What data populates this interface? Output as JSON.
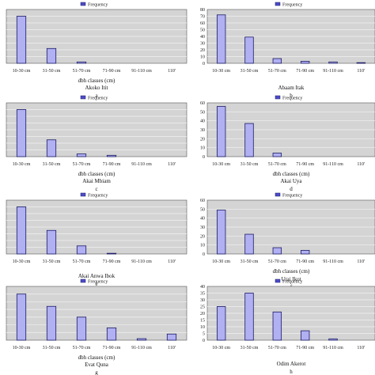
{
  "legend_label": "Frequency",
  "colors": {
    "bar_fill": "#b0b0f2",
    "bar_stroke": "#1a1a66",
    "plot_bg": "#d4d4d4",
    "grid": "#f2f2f2",
    "legend_swatch": "#4c4ccc"
  },
  "chart_data": [
    {
      "type": "bar",
      "panel_letter": "a",
      "title": "Akoko Itit",
      "xlabel": "dbh classes (cm)",
      "categories": [
        "10-30 cm",
        "31-50 cm",
        "51-70 cm",
        "71-90 cm",
        "91-110 cm",
        "110'"
      ],
      "series": [
        {
          "name": "Frequency",
          "values": [
            70,
            22,
            2,
            0,
            0,
            0
          ]
        }
      ],
      "ylim": [
        0,
        80
      ],
      "yticks": [],
      "grid": true,
      "legend": "top"
    },
    {
      "type": "bar",
      "panel_letter": "b",
      "title": "Abaam Itak",
      "xlabel": "",
      "categories": [
        "10-30 cm",
        "31-50 cm",
        "51-70 cm",
        "71-90 cm",
        "91-110 cm",
        "110'"
      ],
      "series": [
        {
          "name": "Frequency",
          "values": [
            72,
            39,
            7,
            3,
            2,
            1
          ]
        }
      ],
      "ylim": [
        0,
        80
      ],
      "yticks": [
        0,
        10,
        20,
        30,
        40,
        50,
        60,
        70,
        80
      ],
      "grid": true,
      "legend": "top"
    },
    {
      "type": "bar",
      "panel_letter": "c",
      "title": "Akai Mbiam",
      "xlabel": "dbh classes (cm)",
      "categories": [
        "10-30 cm",
        "31-50 cm",
        "51-70 cm",
        "71-90 cm",
        "91-110 cm",
        "110'"
      ],
      "series": [
        {
          "name": "Frequency",
          "values": [
            70,
            25,
            4,
            2,
            0,
            0
          ]
        }
      ],
      "ylim": [
        0,
        80
      ],
      "yticks": [],
      "grid": true,
      "legend": "top"
    },
    {
      "type": "bar",
      "panel_letter": "d",
      "title": "Akai Uya",
      "xlabel": "dbh classes (cm)",
      "categories": [
        "10-30 cm",
        "31-50 cm",
        "51-70 cm",
        "71-90 cm",
        "91-110 cm",
        "110'"
      ],
      "series": [
        {
          "name": "Frequency",
          "values": [
            56,
            37,
            4,
            0,
            0,
            0
          ]
        }
      ],
      "ylim": [
        0,
        60
      ],
      "yticks": [
        0,
        10,
        20,
        30,
        40,
        50,
        60
      ],
      "grid": true,
      "legend": "top"
    },
    {
      "type": "bar",
      "panel_letter": "e",
      "title": "Akai Anwa Ibok",
      "xlabel": "",
      "categories": [
        "10-30 cm",
        "31-50 cm",
        "51-70 cm",
        "71-90 cm",
        "91-110 cm",
        "110'"
      ],
      "series": [
        {
          "name": "Frequency",
          "values": [
            70,
            35,
            12,
            1,
            0,
            0
          ]
        }
      ],
      "ylim": [
        0,
        80
      ],
      "yticks": [],
      "grid": true,
      "legend": "top"
    },
    {
      "type": "bar",
      "panel_letter": "f",
      "title": "Utai Ikot",
      "xlabel": "dbh classes (cm)",
      "categories": [
        "10-30 cm",
        "31-50 cm",
        "51-70 cm",
        "71-90 cm",
        "91-110 cm",
        "110'"
      ],
      "series": [
        {
          "name": "Frequency",
          "values": [
            49,
            22,
            7,
            4,
            0,
            0
          ]
        }
      ],
      "ylim": [
        0,
        60
      ],
      "yticks": [
        0,
        10,
        20,
        30,
        40,
        50,
        60
      ],
      "grid": true,
      "legend": "top"
    },
    {
      "type": "bar",
      "panel_letter": "g",
      "title": "Evat Quna",
      "xlabel": "dbh classes (cm)",
      "categories": [
        "10-30 cm",
        "31-50 cm",
        "51-70 cm",
        "71-90 cm",
        "91-110 cm",
        "110'"
      ],
      "series": [
        {
          "name": "Frequency",
          "values": [
            60,
            44,
            30,
            16,
            2,
            8
          ]
        }
      ],
      "ylim": [
        0,
        70
      ],
      "yticks": [],
      "grid": true,
      "legend": "top"
    },
    {
      "type": "bar",
      "panel_letter": "h",
      "title": "Odim Akerot",
      "xlabel": "",
      "categories": [
        "10-30 cm",
        "31-50 cm",
        "51-70 cm",
        "71-90 cm",
        "91-110 cm",
        "110'"
      ],
      "series": [
        {
          "name": "Frequency",
          "values": [
            25,
            35,
            21,
            7,
            1,
            0
          ]
        }
      ],
      "ylim": [
        0,
        40
      ],
      "yticks": [
        0,
        5,
        10,
        15,
        20,
        25,
        30,
        35,
        40
      ],
      "grid": true,
      "legend": "top"
    }
  ]
}
